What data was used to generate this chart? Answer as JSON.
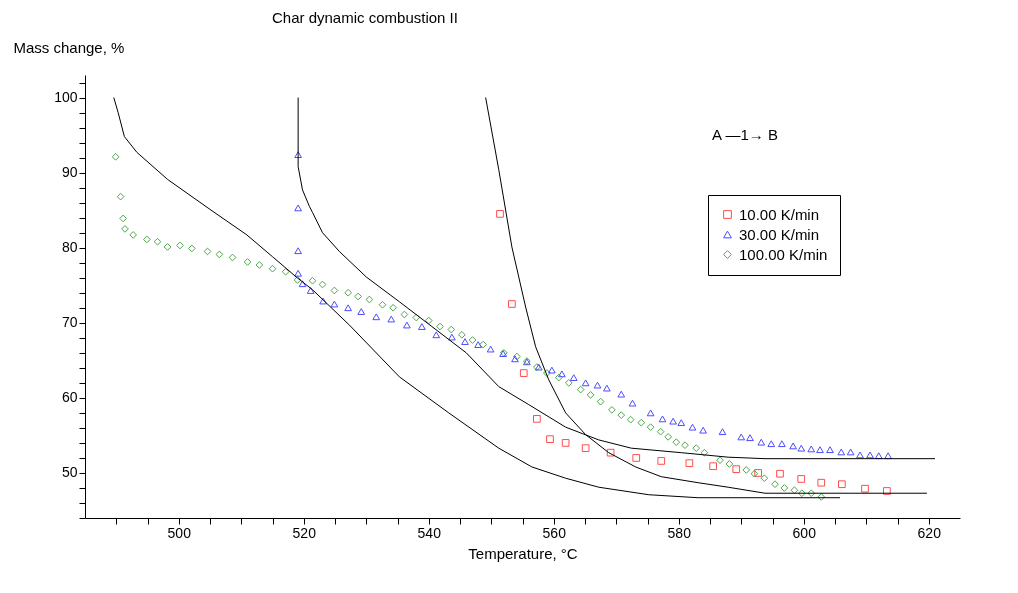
{
  "chart_data": {
    "type": "scatter",
    "title": "Char dynamic combustion II",
    "xlabel": "Temperature, °C",
    "ylabel": "Mass change, %",
    "annotations": [
      "A —1→ B"
    ],
    "xlim": [
      485,
      625
    ],
    "ylim": [
      44,
      103
    ],
    "xticks": [
      {
        "value": 490,
        "label": null
      },
      {
        "value": 495,
        "label": null
      },
      500,
      {
        "value": 505,
        "label": null
      },
      {
        "value": 510,
        "label": null
      },
      {
        "value": 515,
        "label": null
      },
      520,
      {
        "value": 525,
        "label": null
      },
      {
        "value": 530,
        "label": null
      },
      {
        "value": 535,
        "label": null
      },
      540,
      {
        "value": 545,
        "label": null
      },
      {
        "value": 550,
        "label": null
      },
      {
        "value": 555,
        "label": null
      },
      560,
      {
        "value": 565,
        "label": null
      },
      {
        "value": 570,
        "label": null
      },
      {
        "value": 575,
        "label": null
      },
      580,
      {
        "value": 585,
        "label": null
      },
      {
        "value": 590,
        "label": null
      },
      {
        "value": 595,
        "label": null
      },
      600,
      {
        "value": 605,
        "label": null
      },
      {
        "value": 610,
        "label": null
      },
      {
        "value": 615,
        "label": null
      },
      620
    ],
    "yticks": [
      {
        "value": 44,
        "label": null
      },
      {
        "value": 46,
        "label": null
      },
      {
        "value": 48,
        "label": null
      },
      50,
      {
        "value": 52,
        "label": null
      },
      {
        "value": 54,
        "label": null
      },
      {
        "value": 56,
        "label": null
      },
      {
        "value": 58,
        "label": null
      },
      60,
      {
        "value": 62,
        "label": null
      },
      {
        "value": 64,
        "label": null
      },
      {
        "value": 66,
        "label": null
      },
      {
        "value": 68,
        "label": null
      },
      70,
      {
        "value": 72,
        "label": null
      },
      {
        "value": 74,
        "label": null
      },
      {
        "value": 76,
        "label": null
      },
      {
        "value": 78,
        "label": null
      },
      80,
      {
        "value": 82,
        "label": null
      },
      {
        "value": 84,
        "label": null
      },
      {
        "value": 86,
        "label": null
      },
      {
        "value": 88,
        "label": null
      },
      90,
      {
        "value": 92,
        "label": null
      },
      {
        "value": 94,
        "label": null
      },
      {
        "value": 96,
        "label": null
      },
      {
        "value": 98,
        "label": null
      },
      100,
      {
        "value": 102,
        "label": null
      }
    ],
    "legend": "top right",
    "series": [
      {
        "name": "10.00 K/min",
        "color": "#ff0000",
        "marker": "square",
        "x": [
          551.4,
          553.3,
          555.2,
          557.3,
          559.4,
          561.9,
          565.1,
          569.1,
          573.2,
          577.2,
          581.7,
          585.5,
          589.2,
          592.7,
          596.2,
          599.6,
          602.8,
          606.1,
          609.8,
          613.3
        ],
        "values": [
          84.5,
          72.5,
          63.3,
          57.2,
          54.5,
          54,
          53.3,
          52.7,
          52,
          51.6,
          51.3,
          50.9,
          50.5,
          50,
          49.9,
          49.2,
          48.7,
          48.5,
          47.9,
          47.6
        ]
      },
      {
        "name": "30.00 K/min",
        "color": "#0000ff",
        "marker": "triangle",
        "x": [
          519.1,
          519.1,
          519.1,
          519.1,
          519.8,
          521.1,
          523.1,
          524.9,
          527.1,
          529.2,
          531.6,
          534,
          536.5,
          538.9,
          541.2,
          543.7,
          545.8,
          547.9,
          549.9,
          551.9,
          553.8,
          555.7,
          557.6,
          559.7,
          561.3,
          563.2,
          565.1,
          567,
          568.5,
          570.8,
          572.6,
          575.5,
          577.4,
          579.1,
          580.4,
          582.2,
          583.9,
          587,
          590,
          591.4,
          593.2,
          594.8,
          596.5,
          598.3,
          599.6,
          601.2,
          602.6,
          604.2,
          606,
          607.5,
          609,
          610.6,
          612,
          613.5
        ],
        "values": [
          92.4,
          85.3,
          79.6,
          76.6,
          75.2,
          74.3,
          72.9,
          72.5,
          72,
          71.5,
          70.8,
          70.5,
          69.7,
          69.5,
          68.4,
          68.1,
          67.5,
          67.1,
          66.5,
          65.9,
          65.2,
          64.8,
          64.1,
          63.7,
          63.2,
          62.7,
          62,
          61.7,
          61.3,
          60.5,
          59.3,
          58,
          57.2,
          56.9,
          56.7,
          56.1,
          55.7,
          55.5,
          54.8,
          54.7,
          54.1,
          53.9,
          53.9,
          53.6,
          53.3,
          53.2,
          53.1,
          53.1,
          52.8,
          52.8,
          52.4,
          52.4,
          52.3,
          52.3
        ]
      },
      {
        "name": "100.00 K/min",
        "color": "#008000",
        "marker": "diamond",
        "x": [
          489.9,
          490.7,
          491.1,
          491.4,
          492.7,
          494.9,
          496.6,
          498.2,
          500.2,
          502.1,
          504.6,
          506.5,
          508.6,
          511,
          512.9,
          515,
          517.1,
          519,
          521.4,
          523,
          524.9,
          527.1,
          528.7,
          530.5,
          532.6,
          534.3,
          536.1,
          538,
          540,
          541.8,
          543.6,
          545.3,
          547,
          548.7,
          552,
          554.1,
          555.7,
          557.3,
          558.9,
          560.8,
          562.4,
          564.3,
          565.9,
          567.5,
          569.3,
          570.8,
          572.3,
          574,
          575.5,
          577.1,
          578.3,
          579.6,
          581,
          582.8,
          584.1,
          586.6,
          588.1,
          590.8,
          592.1,
          593.7,
          595.4,
          596.9,
          598.5,
          599.7,
          601.2,
          602.8
        ],
        "values": [
          92.1,
          86.8,
          83.9,
          82.5,
          81.7,
          81.1,
          80.8,
          80.1,
          80.3,
          79.9,
          79.5,
          79.1,
          78.7,
          78.1,
          77.7,
          77.2,
          76.8,
          75.7,
          75.6,
          75.1,
          74.3,
          74,
          73.5,
          73.1,
          72.4,
          72,
          71.1,
          70.7,
          70.3,
          69.5,
          69.1,
          68.4,
          67.7,
          67.1,
          66,
          65.5,
          64.9,
          64.1,
          63.3,
          62.7,
          62,
          61.1,
          60.4,
          59.5,
          58.4,
          57.7,
          57.1,
          56.7,
          56.1,
          55.5,
          54.8,
          54.1,
          53.7,
          53.3,
          52.7,
          51.7,
          51.2,
          50.4,
          49.9,
          49.3,
          48.5,
          48,
          47.7,
          47.3,
          47.3,
          46.8
        ]
      },
      {
        "type": "line",
        "color": "#000000",
        "x": [
          549.1,
          551.2,
          553.3,
          555.5,
          557.1,
          559.2,
          561.9,
          565.1,
          568.8,
          573.1,
          577.2,
          583.1,
          587.9,
          593.8,
          619.7
        ],
        "values": [
          100,
          90.4,
          80.1,
          72.1,
          66.8,
          62.4,
          58,
          55.1,
          52.7,
          50.8,
          49.5,
          48.7,
          48.1,
          47.3,
          47.3
        ]
      },
      {
        "type": "line",
        "color": "#000000",
        "x": [
          519.1,
          519.1,
          519.8,
          520.9,
          521.4,
          523,
          525.7,
          530,
          535.3,
          540.5,
          546,
          551.2,
          556,
          561.9,
          567.2,
          572.4,
          580.4,
          587.9,
          593.8,
          621
        ],
        "values": [
          100,
          90.8,
          87.7,
          85.5,
          84.7,
          82,
          79.5,
          76.1,
          72.8,
          69.5,
          66,
          61.5,
          59.1,
          56.1,
          54.4,
          53.3,
          52.7,
          52.1,
          51.9,
          51.9
        ]
      },
      {
        "type": "line",
        "color": "#000000",
        "x": [
          489.6,
          490.3,
          491.3,
          493.3,
          498.2,
          505,
          510.9,
          515,
          518.8,
          521.4,
          527.3,
          535.3,
          543.2,
          551.2,
          556.5,
          561.9,
          567.2,
          575.2,
          583.1,
          605.8
        ],
        "values": [
          100,
          98,
          94.8,
          92.7,
          89.1,
          85.1,
          81.7,
          78.8,
          76.1,
          74.4,
          69.7,
          62.8,
          58,
          53.3,
          50.8,
          49.3,
          48.1,
          47.1,
          46.7,
          46.7
        ]
      }
    ]
  }
}
